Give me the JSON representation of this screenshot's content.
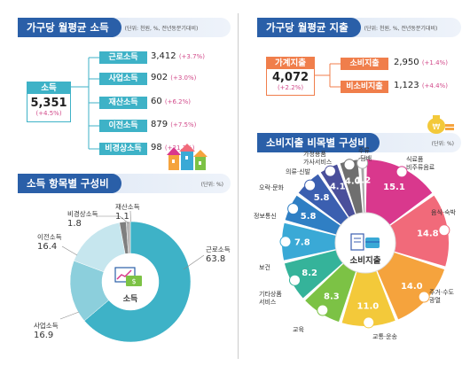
{
  "income_avg": {
    "title": "가구당 월평균 소득",
    "unit": "(단위: 천원, %, 전년동분기대비)",
    "total_label": "소득",
    "total_value": "5,351",
    "total_change": "(+4.5%)",
    "items": [
      {
        "label": "근로소득",
        "value": "3,412",
        "change": "(+3.7%)"
      },
      {
        "label": "사업소득",
        "value": "902",
        "change": "(+3.0%)"
      },
      {
        "label": "재산소득",
        "value": "60",
        "change": "(+6.2%)"
      },
      {
        "label": "이전소득",
        "value": "879",
        "change": "(+7.5%)"
      },
      {
        "label": "비경상소득",
        "value": "98",
        "change": "(+21.1%)"
      }
    ]
  },
  "expense_avg": {
    "title": "가구당 월평균 지출",
    "unit": "(단위: 천원, %, 전년동분기대비)",
    "total_label": "가계지출",
    "total_value": "4,072",
    "total_change": "(+2.2%)",
    "items": [
      {
        "label": "소비지출",
        "value": "2,950",
        "change": "(+1.4%)"
      },
      {
        "label": "비소비지출",
        "value": "1,123",
        "change": "(+4.4%)"
      }
    ]
  },
  "chart_data": [
    {
      "type": "pie",
      "title": "소득 항목별 구성비",
      "unit": "(단위: %)",
      "center_label": "소득",
      "categories": [
        "근로소득",
        "사업소득",
        "이전소득",
        "비경상소득",
        "재산소득"
      ],
      "values": [
        63.8,
        16.9,
        16.4,
        1.8,
        1.1
      ],
      "value_labels": [
        "63.8",
        "16.9",
        "16.4",
        "1.8",
        "1.1"
      ],
      "colors": [
        "#3eb2c7",
        "#8ccfdc",
        "#c6e6ee",
        "#7f7f7f",
        "#b7b7b7"
      ]
    },
    {
      "type": "pie",
      "title": "소비지출 비목별 구성비",
      "unit": "(단위: %)",
      "center_label": "소비지출",
      "categories": [
        "식료품\n비주류음료",
        "음식·숙박",
        "주거·수도\n광열",
        "교통·운송",
        "교육",
        "기타상품\n서비스",
        "보건",
        "정보통신",
        "오락·문화",
        "의류·신발",
        "가정용품\n가사서비스",
        "주류\n·담배"
      ],
      "values": [
        15.1,
        14.8,
        14.0,
        11.0,
        8.3,
        8.2,
        7.8,
        5.8,
        5.8,
        4.1,
        4.0,
        1.2
      ],
      "value_labels": [
        "15.1",
        "14.8",
        "14.0",
        "11.0",
        "8.3",
        "8.2",
        "7.8",
        "5.8",
        "5.8",
        "4.1",
        "4.0",
        "1.2"
      ],
      "colors": [
        "#d9388d",
        "#f16a7a",
        "#f5a33d",
        "#f3c93a",
        "#7cc245",
        "#35b39a",
        "#3aa9d6",
        "#2f7fc4",
        "#3b5fb0",
        "#4a4f9b",
        "#6f6f6f",
        "#a7a7a7"
      ]
    }
  ]
}
